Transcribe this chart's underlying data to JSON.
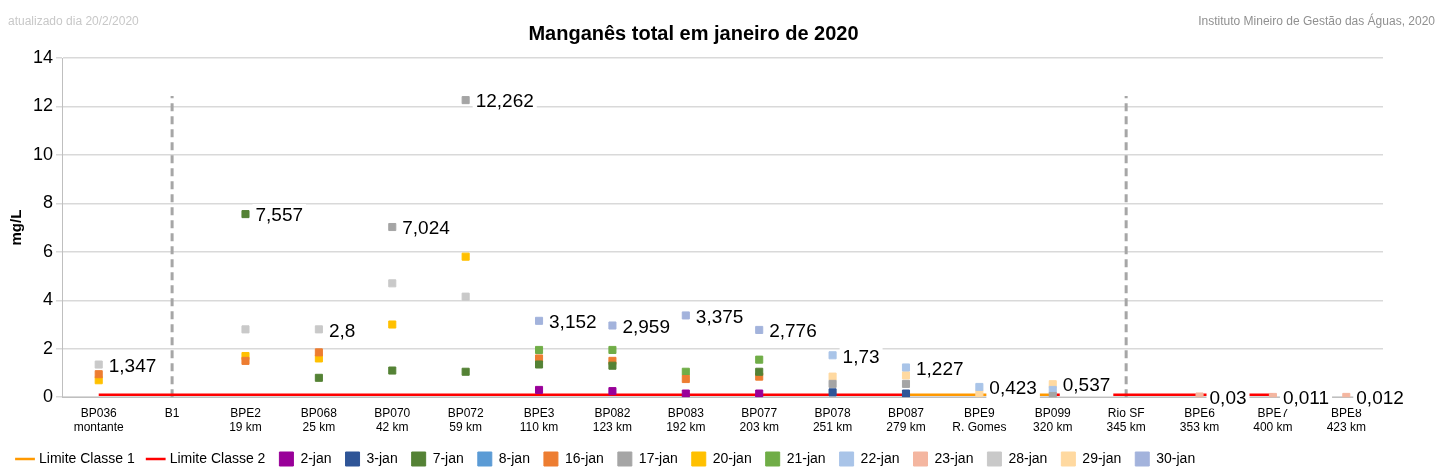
{
  "chart_data": {
    "type": "scatter",
    "title": "Manganês total em janeiro de 2020",
    "ylabel": "mg/L",
    "annotations": [
      "atualizado dia 20/2/2020",
      "Instituto Mineiro de Gestão das Águas, 2020"
    ],
    "categories": [
      "BP036\nmontante",
      "B1",
      "BPE2\n19 km",
      "BP068\n25 km",
      "BP070\n42 km",
      "BP072\n59 km",
      "BPE3\n110 km",
      "BP082\n123 km",
      "BP083\n192 km",
      "BP077\n203 km",
      "BP078\n251 km",
      "BP087\n279 km",
      "BPE9\nR. Gomes",
      "BP099\n320 km",
      "Rio SF\n345 km",
      "BPE6\n353 km",
      "BPE7\n400 km",
      "BPE8\n423 km"
    ],
    "ylim": [
      0,
      14
    ],
    "yticks": [
      0,
      2,
      4,
      6,
      8,
      10,
      12,
      14
    ],
    "grid": "y",
    "legend": "bottom",
    "marker": "square",
    "ref_lines": [
      {
        "axis": "x",
        "value": "B1",
        "color": "#a6a6a6",
        "line_style": "dashed"
      },
      {
        "axis": "x",
        "value": "Rio SF\n345 km",
        "color": "#a6a6a6",
        "line_style": "dashed"
      }
    ],
    "series": [
      {
        "name": "Limite Classe 1",
        "type": "line",
        "marker": "none",
        "color": "#ff9900",
        "values": [
          null,
          null,
          null,
          null,
          null,
          null,
          null,
          null,
          null,
          null,
          null,
          0.1,
          0.1,
          0.1,
          null,
          null,
          null,
          null
        ]
      },
      {
        "name": "Limite Classe 2",
        "type": "line",
        "marker": "none",
        "color": "#ff0000",
        "values": [
          0.1,
          0.1,
          0.1,
          0.1,
          0.1,
          0.1,
          0.1,
          0.1,
          0.1,
          0.1,
          0.1,
          0.1,
          null,
          0.1,
          0.1,
          0.1,
          0.1,
          null
        ]
      },
      {
        "name": "2-jan",
        "color": "#990099",
        "values": [
          null,
          null,
          null,
          null,
          null,
          null,
          0.3,
          0.25,
          0.15,
          0.15,
          null,
          null,
          null,
          null,
          null,
          null,
          null,
          null
        ]
      },
      {
        "name": "3-jan",
        "color": "#2f5597",
        "values": [
          null,
          null,
          null,
          null,
          null,
          null,
          null,
          null,
          null,
          null,
          0.2,
          0.15,
          null,
          null,
          null,
          null,
          null,
          null
        ]
      },
      {
        "name": "7-jan",
        "color": "#548235",
        "values": [
          null,
          null,
          7.557,
          0.8,
          1.1,
          1.05,
          1.35,
          1.3,
          null,
          1.05,
          null,
          null,
          null,
          null,
          null,
          null,
          null,
          null
        ],
        "value_labels": [
          null,
          null,
          "7,557",
          null,
          null,
          null,
          null,
          null,
          null,
          null,
          null,
          null,
          null,
          null,
          null,
          null,
          null,
          null
        ]
      },
      {
        "name": "8-jan",
        "color": "#5b9bd5",
        "values": [
          null,
          null,
          null,
          null,
          null,
          null,
          null,
          null,
          null,
          null,
          null,
          null,
          null,
          null,
          null,
          null,
          null,
          null
        ]
      },
      {
        "name": "16-jan",
        "color": "#ed7d31",
        "values": [
          0.95,
          null,
          1.5,
          1.85,
          null,
          null,
          1.6,
          1.5,
          0.75,
          0.85,
          null,
          null,
          null,
          null,
          null,
          null,
          null,
          null
        ]
      },
      {
        "name": "17-jan",
        "color": "#a5a5a5",
        "values": [
          null,
          null,
          null,
          null,
          7.024,
          12.262,
          null,
          null,
          null,
          null,
          0.55,
          0.55,
          null,
          0.05,
          null,
          null,
          null,
          null
        ],
        "value_labels": [
          null,
          null,
          null,
          null,
          "7,024",
          "12,262",
          null,
          null,
          null,
          null,
          null,
          null,
          null,
          null,
          null,
          null,
          null,
          null
        ]
      },
      {
        "name": "20-jan",
        "color": "#ffc000",
        "values": [
          0.7,
          null,
          1.7,
          1.6,
          3.0,
          5.8,
          null,
          null,
          null,
          null,
          null,
          null,
          null,
          null,
          null,
          null,
          null,
          null
        ]
      },
      {
        "name": "21-jan",
        "color": "#70ad47",
        "values": [
          null,
          null,
          null,
          null,
          null,
          null,
          1.95,
          1.95,
          1.05,
          1.55,
          null,
          null,
          null,
          null,
          null,
          null,
          null,
          null
        ]
      },
      {
        "name": "22-jan",
        "color": "#a9c4e8",
        "values": [
          null,
          null,
          null,
          null,
          null,
          null,
          null,
          null,
          null,
          null,
          1.73,
          1.227,
          0.423,
          0.3,
          null,
          null,
          null,
          null
        ],
        "value_labels": [
          null,
          null,
          null,
          null,
          null,
          null,
          null,
          null,
          null,
          null,
          "1,73",
          "1,227",
          "0,423",
          null,
          null,
          null,
          null,
          null
        ]
      },
      {
        "name": "23-jan",
        "color": "#f4b6a0",
        "values": [
          null,
          null,
          null,
          null,
          null,
          null,
          null,
          null,
          null,
          null,
          null,
          null,
          null,
          null,
          null,
          0.03,
          0.011,
          0.012
        ],
        "value_labels": [
          null,
          null,
          null,
          null,
          null,
          null,
          null,
          null,
          null,
          null,
          null,
          null,
          null,
          null,
          null,
          "0,03",
          "0,011",
          "0,012"
        ]
      },
      {
        "name": "28-jan",
        "color": "#c9c9c9",
        "values": [
          1.347,
          null,
          2.8,
          2.8,
          4.7,
          4.15,
          null,
          null,
          null,
          null,
          null,
          null,
          null,
          null,
          null,
          null,
          null,
          null
        ],
        "value_labels": [
          "1,347",
          null,
          null,
          "2,8",
          null,
          null,
          null,
          null,
          null,
          null,
          null,
          null,
          null,
          null,
          null,
          null,
          null,
          null
        ]
      },
      {
        "name": "29-jan",
        "color": "#ffd9a0",
        "values": [
          null,
          null,
          null,
          null,
          null,
          null,
          null,
          null,
          null,
          null,
          0.85,
          0.9,
          0.15,
          0.537,
          null,
          null,
          null,
          null
        ],
        "value_labels": [
          null,
          null,
          null,
          null,
          null,
          null,
          null,
          null,
          null,
          null,
          null,
          null,
          null,
          "0,537",
          null,
          null,
          null,
          null
        ]
      },
      {
        "name": "30-jan",
        "color": "#a3b3dc",
        "values": [
          null,
          null,
          null,
          null,
          null,
          null,
          3.152,
          2.959,
          3.375,
          2.776,
          null,
          null,
          null,
          null,
          null,
          null,
          null,
          null
        ],
        "value_labels": [
          null,
          null,
          null,
          null,
          null,
          null,
          "3,152",
          "2,959",
          "3,375",
          "2,776",
          null,
          null,
          null,
          null,
          null,
          null,
          null,
          null
        ]
      }
    ]
  }
}
